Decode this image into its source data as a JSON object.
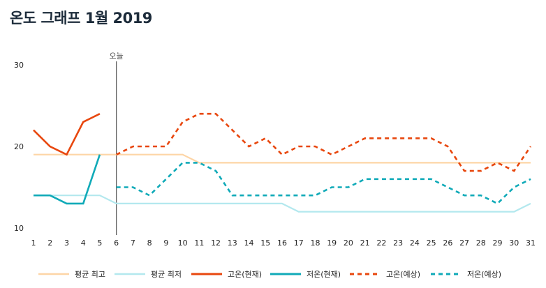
{
  "title": "온도 그래프 1월 2019",
  "chart_data": {
    "type": "line",
    "title": "온도 그래프 1월 2019",
    "xlabel": "",
    "ylabel": "",
    "x": [
      1,
      2,
      3,
      4,
      5,
      6,
      7,
      8,
      9,
      10,
      11,
      12,
      13,
      14,
      15,
      16,
      17,
      18,
      19,
      20,
      21,
      22,
      23,
      24,
      25,
      26,
      27,
      28,
      29,
      30,
      31
    ],
    "xlim": [
      1,
      31
    ],
    "ylim": [
      10,
      30
    ],
    "yticks": [
      10,
      20,
      30
    ],
    "grid": false,
    "legend_position": "bottom",
    "today": {
      "x": 6,
      "label": "오늘"
    },
    "series": [
      {
        "name": "평균 최고",
        "color": "#fdd5a6",
        "dash": false,
        "x": [
          1,
          2,
          3,
          4,
          5,
          6,
          7,
          8,
          9,
          10,
          11,
          12,
          13,
          14,
          15,
          16,
          17,
          18,
          19,
          20,
          21,
          22,
          23,
          24,
          25,
          26,
          27,
          28,
          29,
          30,
          31
        ],
        "values": [
          19,
          19,
          19,
          19,
          19,
          19,
          19,
          19,
          19,
          19,
          18,
          18,
          18,
          18,
          18,
          18,
          18,
          18,
          18,
          18,
          18,
          18,
          18,
          18,
          18,
          18,
          18,
          18,
          18,
          18,
          18
        ]
      },
      {
        "name": "평균 최저",
        "color": "#b3e8ee",
        "dash": false,
        "x": [
          1,
          2,
          3,
          4,
          5,
          6,
          7,
          8,
          9,
          10,
          11,
          12,
          13,
          14,
          15,
          16,
          17,
          18,
          19,
          20,
          21,
          22,
          23,
          24,
          25,
          26,
          27,
          28,
          29,
          30,
          31
        ],
        "values": [
          14,
          14,
          14,
          14,
          14,
          13,
          13,
          13,
          13,
          13,
          13,
          13,
          13,
          13,
          13,
          13,
          12,
          12,
          12,
          12,
          12,
          12,
          12,
          12,
          12,
          12,
          12,
          12,
          12,
          12,
          13
        ]
      },
      {
        "name": "고온(현재)",
        "color": "#e8470e",
        "dash": false,
        "x": [
          1,
          2,
          3,
          4,
          5
        ],
        "values": [
          22,
          20,
          19,
          23,
          24
        ]
      },
      {
        "name": "저온(현재)",
        "color": "#10aab8",
        "dash": false,
        "x": [
          1,
          2,
          3,
          4,
          5
        ],
        "values": [
          14,
          14,
          13,
          13,
          19
        ]
      },
      {
        "name": "고온(예상)",
        "color": "#e8470e",
        "dash": true,
        "x": [
          6,
          7,
          8,
          9,
          10,
          11,
          12,
          13,
          14,
          15,
          16,
          17,
          18,
          19,
          20,
          21,
          22,
          23,
          24,
          25,
          26,
          27,
          28,
          29,
          30,
          31
        ],
        "values": [
          19,
          20,
          20,
          20,
          23,
          24,
          24,
          22,
          20,
          21,
          19,
          20,
          20,
          19,
          20,
          21,
          21,
          21,
          21,
          21,
          20,
          17,
          17,
          18,
          17,
          20
        ]
      },
      {
        "name": "저온(예상)",
        "color": "#10aab8",
        "dash": true,
        "x": [
          6,
          7,
          8,
          9,
          10,
          11,
          12,
          13,
          14,
          15,
          16,
          17,
          18,
          19,
          20,
          21,
          22,
          23,
          24,
          25,
          26,
          27,
          28,
          29,
          30,
          31
        ],
        "values": [
          15,
          15,
          14,
          16,
          18,
          18,
          17,
          14,
          14,
          14,
          14,
          14,
          14,
          15,
          15,
          16,
          16,
          16,
          16,
          16,
          15,
          14,
          14,
          13,
          15,
          16
        ]
      }
    ]
  }
}
